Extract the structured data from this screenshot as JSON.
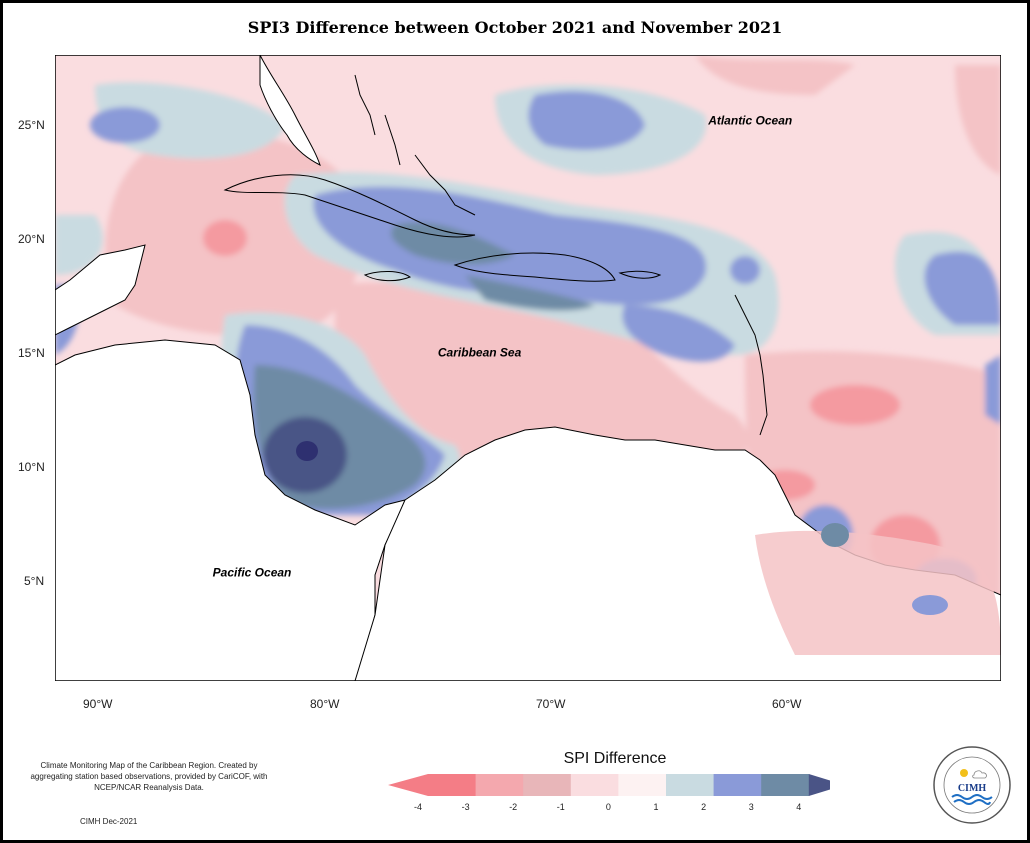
{
  "title": "SPI3 Difference between October 2021 and November 2021",
  "map": {
    "bounds": {
      "lon_min": -92,
      "lon_max": -50,
      "lat_min": 0.5,
      "lat_max": 27.5
    },
    "region_labels": [
      {
        "text": "Atlantic Ocean",
        "lon": -63,
        "lat": 24.5
      },
      {
        "text": "Caribbean Sea",
        "lon": -75,
        "lat": 14.5
      },
      {
        "text": "Pacific Ocean",
        "lon": -85,
        "lat": 5.0
      }
    ],
    "lat_ticks": [
      "25°N",
      "20°N",
      "15°N",
      "10°N",
      "5°N"
    ],
    "lon_ticks": [
      "90°W",
      "80°W",
      "70°W",
      "60°W"
    ]
  },
  "legend": {
    "title": "SPI Difference",
    "ticks": [
      "-4",
      "-3",
      "-2",
      "-1",
      "0",
      "1",
      "2",
      "3",
      "4"
    ],
    "colors": [
      "#f47d86",
      "#f4a8ae",
      "#e8b6b9",
      "#fadde0",
      "#fdf2f2",
      "#c9dbe1",
      "#8a9ad8",
      "#6e8ba5",
      "#4a5486"
    ]
  },
  "footer": {
    "description": "Climate Monitoring Map of the Caribbean Region. Created by aggregating station based observations, provided by CariCOF, with NCEP/NCAR Reanalysis Data.",
    "credit": "CIMH Dec-2021",
    "logo_text": "CIMH"
  }
}
